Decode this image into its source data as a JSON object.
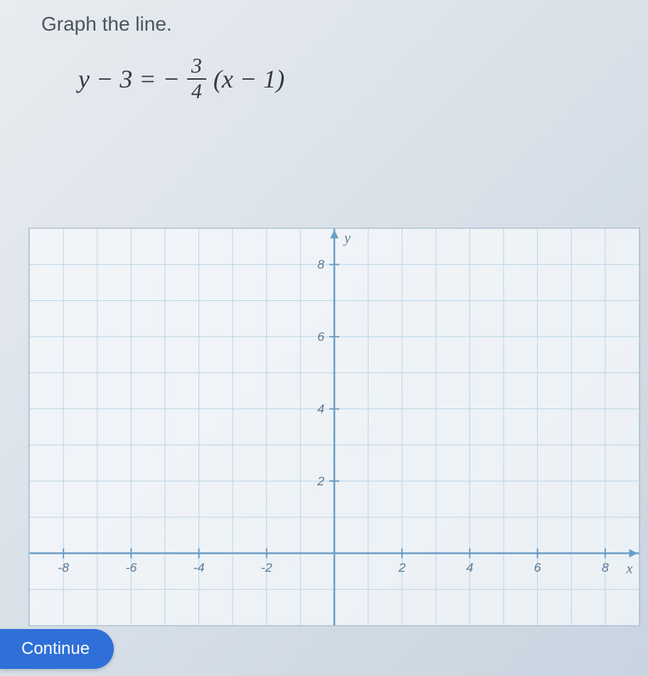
{
  "prompt": "Graph the line.",
  "equation": {
    "lhs": "y − 3 = −",
    "frac_num": "3",
    "frac_den": "4",
    "rhs": "(x − 1)"
  },
  "continue_label": "Continue",
  "graph": {
    "type": "coordinate-grid",
    "xmin": -9,
    "xmax": 9,
    "ymin": -2,
    "ymax": 9,
    "x_ticks": [
      -8,
      -6,
      -4,
      -2,
      2,
      4,
      6,
      8
    ],
    "y_ticks": [
      2,
      4,
      6,
      8
    ],
    "x_axis_label": "x",
    "y_axis_label": "y",
    "grid_color": "#b8d4e8",
    "axis_color": "#6a9ec8",
    "tick_label_color": "#5a7a98",
    "background_color": "rgba(250,252,254,0.3)",
    "tick_fontsize": 18,
    "axis_label_fontsize": 20
  }
}
